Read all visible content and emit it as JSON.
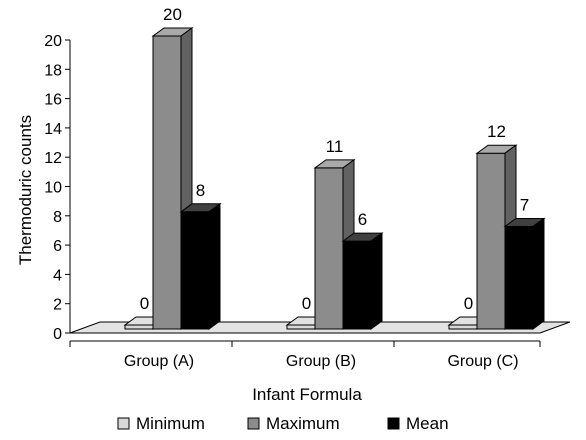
{
  "chart_data": {
    "type": "bar",
    "title": "",
    "xlabel": "Infant Formula",
    "ylabel": "Thermoduric counts",
    "categories": [
      "Group (A)",
      "Group (B)",
      "Group (C)"
    ],
    "series": [
      {
        "name": "Minimum",
        "values": [
          0,
          0,
          0
        ],
        "color": "#d8d8d8"
      },
      {
        "name": "Maximum",
        "values": [
          20,
          11,
          12
        ],
        "color": "#8c8c8c"
      },
      {
        "name": "Mean",
        "values": [
          8,
          6,
          7
        ],
        "color": "#000000"
      }
    ],
    "ylim": [
      0,
      20
    ],
    "yticks": [
      0,
      2,
      4,
      6,
      8,
      10,
      12,
      14,
      16,
      18,
      20
    ],
    "data_labels": true,
    "style": "3d-column",
    "floor_color": "#e3e3e3",
    "grid": false,
    "legend_position": "bottom"
  }
}
